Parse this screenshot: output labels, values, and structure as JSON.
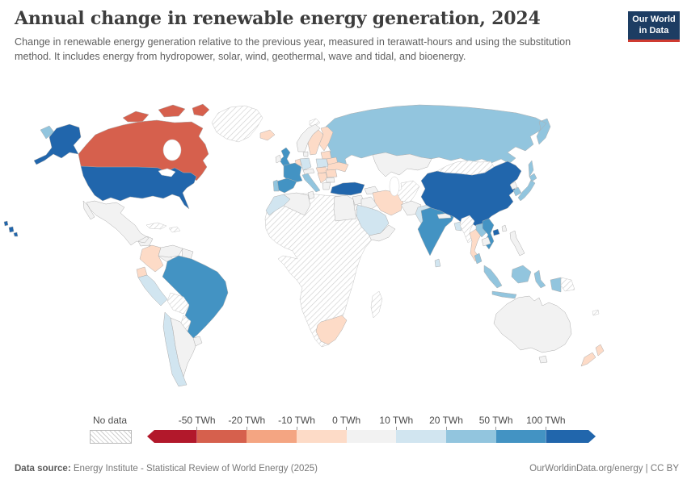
{
  "header": {
    "title": "Annual change in renewable energy generation, 2024",
    "subtitle": "Change in renewable energy generation relative to the previous year, measured in terawatt-hours and using the substitution method. It includes energy from hydropower, solar, wind, geothermal, wave and tidal, and bioenergy.",
    "logo": {
      "line1": "Our World",
      "line2": "in Data",
      "bg": "#1d3d63",
      "accent": "#cf3b31"
    }
  },
  "legend": {
    "no_data_label": "No data",
    "ticks": [
      "-50 TWh",
      "-20 TWh",
      "-10 TWh",
      "0 TWh",
      "10 TWh",
      "20 TWh",
      "50 TWh",
      "100 TWh"
    ]
  },
  "footer": {
    "source_label": "Data source:",
    "source_text": "Energy Institute - Statistical Review of World Energy (2025)",
    "right_text": "OurWorldinData.org/energy | CC BY"
  },
  "chart_data": {
    "type": "choropleth",
    "title": "Annual change in renewable energy generation, 2024",
    "unit": "TWh",
    "legend_position": "bottom",
    "no_data_label": "No data",
    "bins": [
      {
        "label": "< -50",
        "color": "#b2182b"
      },
      {
        "label": "-50 to -20",
        "color": "#d6604d"
      },
      {
        "label": "-20 to -10",
        "color": "#f4a582"
      },
      {
        "label": "-10 to 0",
        "color": "#fddbc7"
      },
      {
        "label": "0 to 10",
        "color": "#f2f2f2"
      },
      {
        "label": "10 to 20",
        "color": "#d1e5f0"
      },
      {
        "label": "20 to 50",
        "color": "#92c5de"
      },
      {
        "label": "50 to 100",
        "color": "#4393c3"
      },
      {
        "label": "> 100",
        "color": "#2166ac"
      }
    ],
    "countries": [
      {
        "id": "greenland",
        "name": "Greenland",
        "bin": "No data"
      },
      {
        "id": "svalbard",
        "name": "Svalbard",
        "bin": "No data"
      },
      {
        "id": "russia",
        "name": "Russia",
        "bin": "20 to 50"
      },
      {
        "id": "canada",
        "name": "Canada",
        "bin": "-50 to -20"
      },
      {
        "id": "united-states",
        "name": "United States",
        "bin": "> 100"
      },
      {
        "id": "mexico",
        "name": "Mexico",
        "bin": "0 to 10"
      },
      {
        "id": "central-america",
        "name": "Central America",
        "bin": "0 to 10"
      },
      {
        "id": "cuba",
        "name": "Cuba",
        "bin": "No data"
      },
      {
        "id": "caribbean",
        "name": "Caribbean islands",
        "bin": "No data"
      },
      {
        "id": "colombia",
        "name": "Colombia",
        "bin": "-10 to 0"
      },
      {
        "id": "venezuela",
        "name": "Venezuela",
        "bin": "0 to 10"
      },
      {
        "id": "guyanas",
        "name": "Guyana and Suriname",
        "bin": "0 to 10"
      },
      {
        "id": "ecuador",
        "name": "Ecuador",
        "bin": "-10 to 0"
      },
      {
        "id": "peru",
        "name": "Peru",
        "bin": "10 to 20"
      },
      {
        "id": "brazil",
        "name": "Brazil",
        "bin": "50 to 100"
      },
      {
        "id": "bolivia",
        "name": "Bolivia",
        "bin": "No data"
      },
      {
        "id": "paraguay",
        "name": "Paraguay",
        "bin": "No data"
      },
      {
        "id": "chile",
        "name": "Chile",
        "bin": "10 to 20"
      },
      {
        "id": "argentina",
        "name": "Argentina",
        "bin": "0 to 10"
      },
      {
        "id": "uruguay",
        "name": "Uruguay",
        "bin": "0 to 10"
      },
      {
        "id": "africa-region",
        "name": "Africa (most countries)",
        "bin": "No data"
      },
      {
        "id": "morocco",
        "name": "Morocco",
        "bin": "10 to 20"
      },
      {
        "id": "algeria",
        "name": "Algeria",
        "bin": "0 to 10"
      },
      {
        "id": "tunisia",
        "name": "Tunisia",
        "bin": "0 to 10"
      },
      {
        "id": "egypt",
        "name": "Egypt",
        "bin": "0 to 10"
      },
      {
        "id": "south-africa",
        "name": "South Africa",
        "bin": "-10 to 0"
      },
      {
        "id": "madagascar",
        "name": "Madagascar",
        "bin": "No data"
      },
      {
        "id": "iceland",
        "name": "Iceland",
        "bin": "-10 to 0"
      },
      {
        "id": "norway",
        "name": "Norway",
        "bin": "0 to 10"
      },
      {
        "id": "sweden",
        "name": "Sweden",
        "bin": "-10 to 0"
      },
      {
        "id": "finland",
        "name": "Finland",
        "bin": "-10 to 0"
      },
      {
        "id": "united-kingdom",
        "name": "United Kingdom",
        "bin": "50 to 100"
      },
      {
        "id": "ireland",
        "name": "Ireland",
        "bin": "0 to 10"
      },
      {
        "id": "baltic-states",
        "name": "Baltic states",
        "bin": "-10 to 0"
      },
      {
        "id": "belarus",
        "name": "Belarus",
        "bin": "-10 to 0"
      },
      {
        "id": "poland",
        "name": "Poland",
        "bin": "10 to 20"
      },
      {
        "id": "germany",
        "name": "Germany",
        "bin": "10 to 20"
      },
      {
        "id": "benelux",
        "name": "Belgium and Netherlands",
        "bin": "-10 to 0"
      },
      {
        "id": "denmark",
        "name": "Denmark",
        "bin": "0 to 10"
      },
      {
        "id": "france",
        "name": "France",
        "bin": "50 to 100"
      },
      {
        "id": "spain",
        "name": "Spain",
        "bin": "50 to 100"
      },
      {
        "id": "portugal",
        "name": "Portugal",
        "bin": "20 to 50"
      },
      {
        "id": "switzerland-austria",
        "name": "Switzerland and Austria",
        "bin": "0 to 10"
      },
      {
        "id": "czechia-hungary",
        "name": "Czechia, Slovakia, Hungary",
        "bin": "-10 to 0"
      },
      {
        "id": "italy",
        "name": "Italy",
        "bin": "20 to 50"
      },
      {
        "id": "balkans",
        "name": "Western Balkans",
        "bin": "-10 to 0"
      },
      {
        "id": "romania",
        "name": "Romania",
        "bin": "-10 to 0"
      },
      {
        "id": "ukraine",
        "name": "Ukraine",
        "bin": "-10 to 0"
      },
      {
        "id": "bulgaria",
        "name": "Bulgaria",
        "bin": "0 to 10"
      },
      {
        "id": "greece",
        "name": "Greece",
        "bin": "0 to 10"
      },
      {
        "id": "kazakhstan",
        "name": "Kazakhstan",
        "bin": "0 to 10"
      },
      {
        "id": "caucasus",
        "name": "Caucasus",
        "bin": "0 to 10"
      },
      {
        "id": "turkey",
        "name": "Turkey",
        "bin": "> 100"
      },
      {
        "id": "syria-levant",
        "name": "Syria and Levant",
        "bin": "0 to 10"
      },
      {
        "id": "iraq",
        "name": "Iraq",
        "bin": "0 to 10"
      },
      {
        "id": "iran",
        "name": "Iran",
        "bin": "-10 to 0"
      },
      {
        "id": "central-asia-stans",
        "name": "Turkmenistan and Uzbekistan",
        "bin": "No data"
      },
      {
        "id": "afghanistan",
        "name": "Afghanistan",
        "bin": "0 to 10"
      },
      {
        "id": "pakistan",
        "name": "Pakistan",
        "bin": "10 to 20"
      },
      {
        "id": "saudi-arabia",
        "name": "Saudi Arabia",
        "bin": "10 to 20"
      },
      {
        "id": "yemen-oman",
        "name": "Yemen and Oman",
        "bin": "0 to 10"
      },
      {
        "id": "india",
        "name": "India",
        "bin": "50 to 100"
      },
      {
        "id": "nepal",
        "name": "Nepal",
        "bin": "0 to 10"
      },
      {
        "id": "bangladesh",
        "name": "Bangladesh",
        "bin": "10 to 20"
      },
      {
        "id": "sri-lanka",
        "name": "Sri Lanka",
        "bin": "10 to 20"
      },
      {
        "id": "china",
        "name": "China",
        "bin": "> 100"
      },
      {
        "id": "mongolia",
        "name": "Mongolia",
        "bin": "No data"
      },
      {
        "id": "north-korea",
        "name": "North Korea",
        "bin": "0 to 10"
      },
      {
        "id": "south-korea",
        "name": "South Korea",
        "bin": "20 to 50"
      },
      {
        "id": "japan",
        "name": "Japan",
        "bin": "20 to 50"
      },
      {
        "id": "taiwan",
        "name": "Taiwan",
        "bin": "0 to 10"
      },
      {
        "id": "myanmar",
        "name": "Myanmar",
        "bin": "No data"
      },
      {
        "id": "thailand",
        "name": "Thailand",
        "bin": "-10 to 0"
      },
      {
        "id": "laos",
        "name": "Laos",
        "bin": "20 to 50"
      },
      {
        "id": "vietnam",
        "name": "Vietnam",
        "bin": "50 to 100"
      },
      {
        "id": "cambodia",
        "name": "Cambodia",
        "bin": "0 to 10"
      },
      {
        "id": "malaysia",
        "name": "Malaysia",
        "bin": "20 to 50"
      },
      {
        "id": "indonesia",
        "name": "Indonesia",
        "bin": "20 to 50"
      },
      {
        "id": "papua-new-guinea",
        "name": "Papua New Guinea",
        "bin": "No data"
      },
      {
        "id": "philippines",
        "name": "Philippines",
        "bin": "0 to 10"
      },
      {
        "id": "australia",
        "name": "Australia",
        "bin": "0 to 10"
      },
      {
        "id": "new-zealand",
        "name": "New Zealand",
        "bin": "-10 to 0"
      },
      {
        "id": "new-caledonia",
        "name": "New Caledonia",
        "bin": "No data"
      }
    ]
  }
}
